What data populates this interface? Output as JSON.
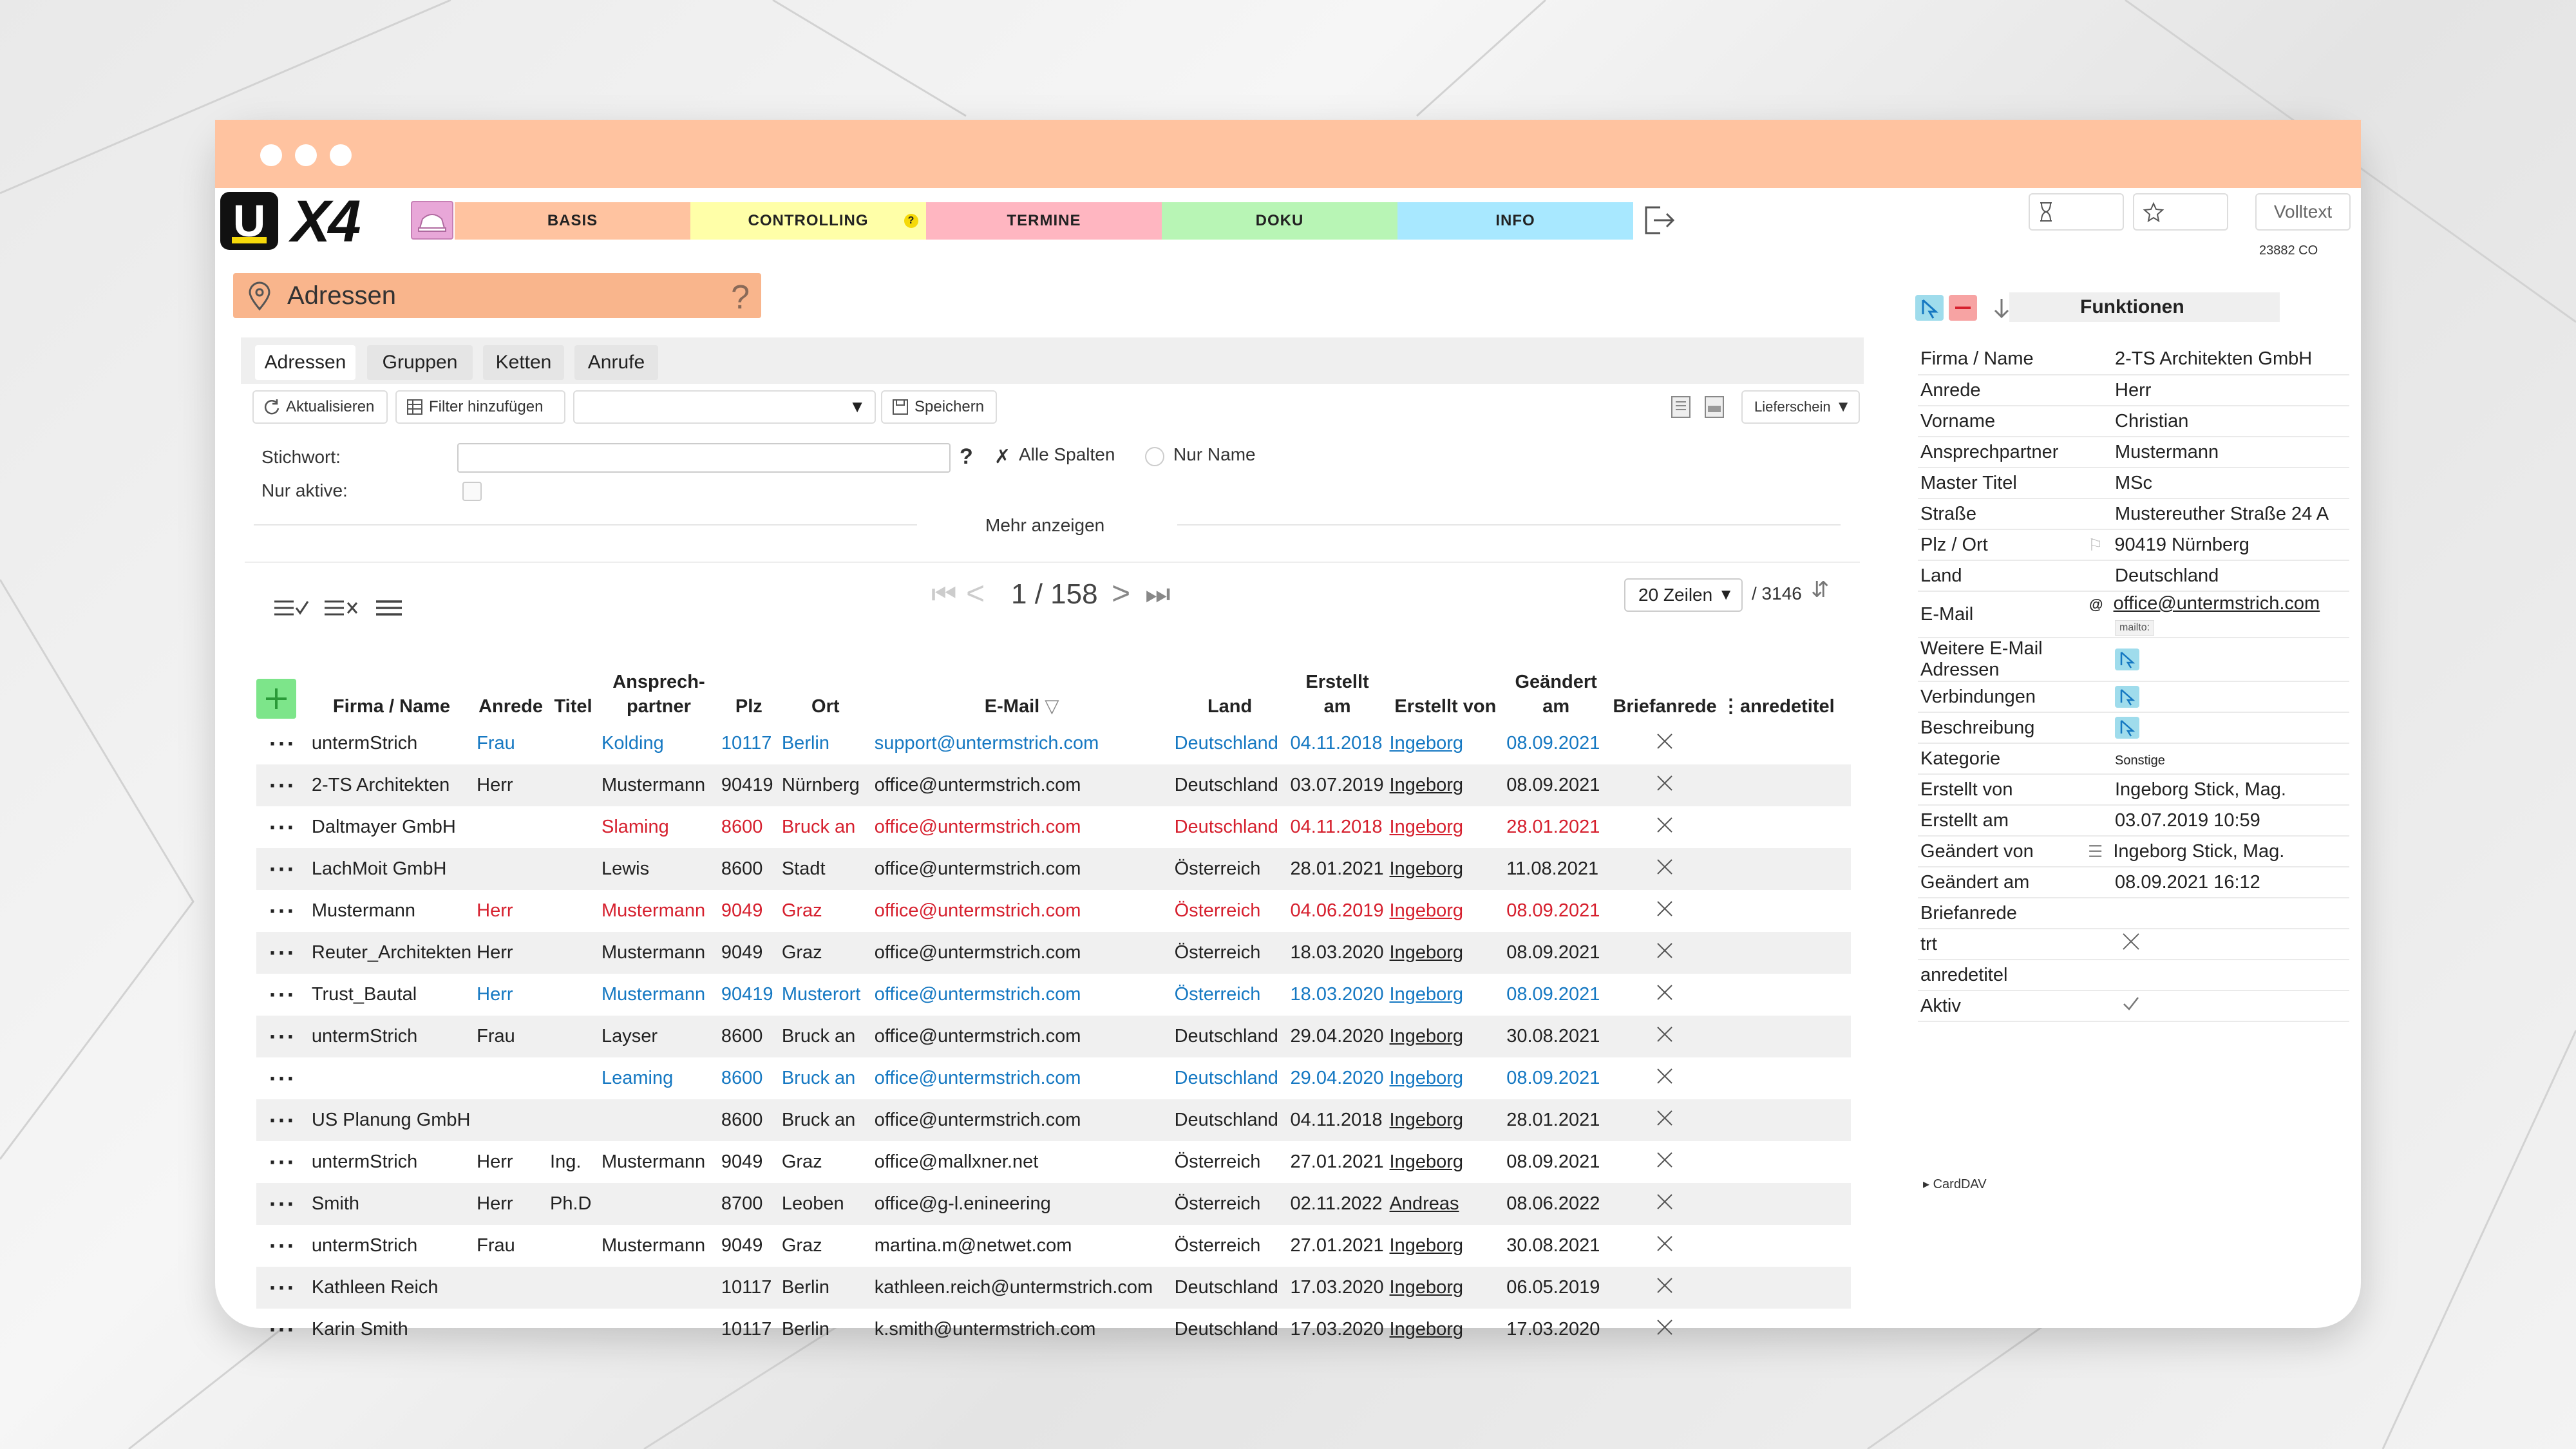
{
  "app": {
    "logo_letter": "U",
    "logo_text": "X4",
    "nav": [
      {
        "label": "BASIS",
        "color": "#ffc3a0"
      },
      {
        "label": "CONTROLLING",
        "badge": "?",
        "color": "#ffffa8"
      },
      {
        "label": "TERMINE",
        "color": "#ffb6c1"
      },
      {
        "label": "DOKU",
        "color": "#b8f5b5"
      },
      {
        "label": "INFO",
        "color": "#a8e8ff"
      }
    ],
    "volltext_label": "Volltext",
    "version": "23882 CO"
  },
  "section": {
    "title": "Adressen",
    "help": "?"
  },
  "tabs": [
    "Adressen",
    "Gruppen",
    "Ketten",
    "Anrufe"
  ],
  "toolbar": {
    "refresh": "Aktualisieren",
    "add_filter": "Filter hinzufügen",
    "save": "Speichern",
    "lieferschein": "Lieferschein"
  },
  "filter": {
    "keyword_label": "Stichwort:",
    "keyword_value": "",
    "help": "?",
    "all_columns": "Alle Spalten",
    "name_only": "Nur Name",
    "active_label": "Nur aktive:",
    "more": "Mehr anzeigen"
  },
  "pager": {
    "page": "1 / 158",
    "rows_label": "20 Zeilen",
    "total": "/ 3146"
  },
  "table": {
    "headers": [
      "Firma / Name",
      "Anrede",
      "Titel",
      "Ansprech-\npartner",
      "Plz",
      "Ort",
      "E-Mail",
      "Land",
      "Erstellt\nam",
      "Erstellt von",
      "Geändert\nam",
      "Briefanrede",
      "",
      "anredetitel"
    ],
    "rows": [
      {
        "style": "blue-partial",
        "cells": [
          "untermStrich",
          "Frau",
          "",
          "Kolding",
          "10117",
          "Berlin",
          "support@untermstrich.com",
          "Deutschland",
          "04.11.2018",
          "Ingeborg",
          "08.09.2021"
        ]
      },
      {
        "style": "",
        "cells": [
          "2-TS Architekten",
          "Herr",
          "",
          "Mustermann",
          "90419",
          "Nürnberg",
          "office@untermstrich.com",
          "Deutschland",
          "03.07.2019",
          "Ingeborg",
          "08.09.2021"
        ]
      },
      {
        "style": "red-partial",
        "cells": [
          "Daltmayer GmbH",
          "",
          "",
          "Slaming",
          "8600",
          "Bruck an",
          "office@untermstrich.com",
          "Deutschland",
          "04.11.2018",
          "Ingeborg",
          "28.01.2021"
        ]
      },
      {
        "style": "",
        "cells": [
          "LachMoit GmbH",
          "",
          "",
          "Lewis",
          "8600",
          "Stadt",
          "office@untermstrich.com",
          "Österreich",
          "28.01.2021",
          "Ingeborg",
          "11.08.2021"
        ]
      },
      {
        "style": "red-partial",
        "cells": [
          "Mustermann",
          "Herr",
          "",
          "Mustermann",
          "9049",
          "Graz",
          "office@untermstrich.com",
          "Österreich",
          "04.06.2019",
          "Ingeborg",
          "08.09.2021"
        ]
      },
      {
        "style": "",
        "cells": [
          "Reuter_Architekten",
          "Herr",
          "",
          "Mustermann",
          "9049",
          "Graz",
          "office@untermstrich.com",
          "Österreich",
          "18.03.2020",
          "Ingeborg",
          "08.09.2021"
        ]
      },
      {
        "style": "blue-partial",
        "cells": [
          "Trust_Bautal",
          "Herr",
          "",
          "Mustermann",
          "90419",
          "Musterort",
          "office@untermstrich.com",
          "Österreich",
          "18.03.2020",
          "Ingeborg",
          "08.09.2021"
        ]
      },
      {
        "style": "",
        "cells": [
          "untermStrich",
          "Frau",
          "",
          "Layser",
          "8600",
          "Bruck an",
          "office@untermstrich.com",
          "Deutschland",
          "29.04.2020",
          "Ingeborg",
          "30.08.2021"
        ]
      },
      {
        "style": "blue-partial",
        "cells": [
          "",
          "",
          "",
          "Leaming",
          "8600",
          "Bruck an",
          "office@untermstrich.com",
          "Deutschland",
          "29.04.2020",
          "Ingeborg",
          "08.09.2021"
        ]
      },
      {
        "style": "",
        "cells": [
          "US Planung GmbH",
          "",
          "",
          "",
          "8600",
          "Bruck an",
          "office@untermstrich.com",
          "Deutschland",
          "04.11.2018",
          "Ingeborg",
          "28.01.2021"
        ]
      },
      {
        "style": "",
        "cells": [
          "untermStrich",
          "Herr",
          "Ing.",
          "Mustermann",
          "9049",
          "Graz",
          "office@mallxner.net",
          "Österreich",
          "27.01.2021",
          "Ingeborg",
          "08.09.2021"
        ]
      },
      {
        "style": "",
        "cells": [
          "Smith",
          "Herr",
          "Ph.D",
          "",
          "8700",
          "Leoben",
          "office@g-l.enineering",
          "Österreich",
          "02.11.2022",
          "Andreas",
          "08.06.2022"
        ]
      },
      {
        "style": "",
        "cells": [
          "untermStrich",
          "Frau",
          "",
          "Mustermann",
          "9049",
          "Graz",
          "martina.m@netwet.com",
          "Österreich",
          "27.01.2021",
          "Ingeborg",
          "30.08.2021"
        ]
      },
      {
        "style": "",
        "cells": [
          "Kathleen Reich",
          "",
          "",
          "",
          "10117",
          "Berlin",
          "kathleen.reich@untermstrich.com",
          "Deutschland",
          "17.03.2020",
          "Ingeborg",
          "06.05.2019"
        ]
      },
      {
        "style": "",
        "cells": [
          "Karin Smith",
          "",
          "",
          "",
          "10117",
          "Berlin",
          "k.smith@untermstrich.com",
          "Deutschland",
          "17.03.2020",
          "Ingeborg",
          "17.03.2020"
        ]
      }
    ]
  },
  "detail": {
    "functions_title": "Funktionen",
    "rows": [
      {
        "k": "Firma / Name",
        "v": "2-TS Architekten GmbH"
      },
      {
        "k": "Anrede",
        "v": "Herr"
      },
      {
        "k": "Vorname",
        "v": "Christian"
      },
      {
        "k": "Ansprechpartner",
        "v": "Mustermann"
      },
      {
        "k": "Master Titel",
        "v": "MSc"
      },
      {
        "k": "Straße",
        "v": "Mustereuther Straße 24 A"
      },
      {
        "k": "Plz / Ort",
        "v": "90419 Nürnberg"
      },
      {
        "k": "Land",
        "v": "Deutschland"
      },
      {
        "k": "E-Mail",
        "v": "office@untermstrich.com",
        "sub": "mailto:"
      },
      {
        "k": "Weitere E-Mail Adressen",
        "v": ""
      },
      {
        "k": "Verbindungen",
        "v": ""
      },
      {
        "k": "Beschreibung",
        "v": ""
      },
      {
        "k": "Kategorie",
        "v": "Sonstige"
      },
      {
        "k": "Erstellt von",
        "v": "Ingeborg Stick, Mag."
      },
      {
        "k": "Erstellt am",
        "v": "03.07.2019 10:59"
      },
      {
        "k": "Geändert von",
        "v": "Ingeborg Stick, Mag."
      },
      {
        "k": "Geändert am",
        "v": "08.09.2021 16:12"
      },
      {
        "k": "Briefanrede",
        "v": ""
      },
      {
        "k": "trt",
        "v": ""
      },
      {
        "k": "anredetitel",
        "v": ""
      },
      {
        "k": "Aktiv",
        "v": ""
      }
    ],
    "carddav": "▸ CardDAV"
  },
  "colors": {
    "accent": "#f9b58c",
    "link": "#1578c2",
    "alert": "#d6202e",
    "add": "#7de58a"
  }
}
